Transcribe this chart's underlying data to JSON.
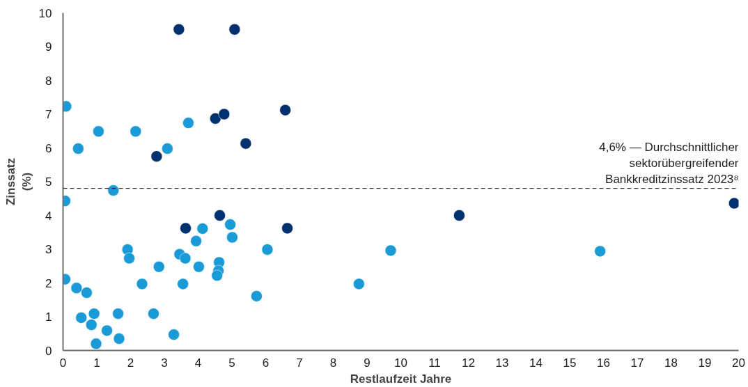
{
  "chart_data": {
    "type": "scatter",
    "xlabel": "Restlaufzeit Jahre",
    "ylabel": "Zinssatz\n(%)",
    "xlim": [
      0,
      20
    ],
    "ylim": [
      0,
      10
    ],
    "xticks": [
      0,
      1,
      2,
      3,
      4,
      5,
      6,
      7,
      8,
      9,
      10,
      11,
      12,
      13,
      14,
      15,
      16,
      17,
      18,
      19,
      20
    ],
    "yticks": [
      0,
      1,
      2,
      3,
      4,
      5,
      6,
      7,
      8,
      9,
      10
    ],
    "grid": false,
    "marker": "circle",
    "ref_lines": [
      {
        "axis": "y",
        "value": 4.8,
        "label": "4,6% — Durchschnittlicher\nsektorübergreifender\nBankkreditzinssatz 2023⁸",
        "color": "#000000",
        "line_style": "dashed"
      }
    ],
    "series": [
      {
        "color": "#1a9bd7",
        "x": [
          0.09,
          0.45,
          1.05,
          2.15,
          3.09,
          3.71,
          1.49,
          0.06,
          0.06,
          0.4,
          0.7,
          0.54,
          0.92,
          0.84,
          0.98,
          1.3,
          1.63,
          1.66,
          1.91,
          1.96,
          2.34,
          2.68,
          2.84,
          3.28,
          3.45,
          3.62,
          3.55,
          3.94,
          4.13,
          4.02,
          4.95,
          5.01,
          4.62,
          4.6,
          4.56,
          6.05,
          5.73,
          8.76,
          9.7,
          15.9
        ],
        "values": [
          7.23,
          5.98,
          6.49,
          6.49,
          5.98,
          6.74,
          4.74,
          4.43,
          2.11,
          1.85,
          1.71,
          0.97,
          1.09,
          0.76,
          0.2,
          0.59,
          1.09,
          0.35,
          2.99,
          2.73,
          1.97,
          1.09,
          2.48,
          0.47,
          2.85,
          2.73,
          1.97,
          3.24,
          3.61,
          2.48,
          3.73,
          3.35,
          2.61,
          2.36,
          2.22,
          2.99,
          1.61,
          1.97,
          2.96,
          2.94
        ]
      },
      {
        "color": "#00306e",
        "x": [
          3.43,
          5.08,
          4.51,
          4.77,
          6.58,
          5.41,
          2.77,
          4.64,
          3.63,
          6.64,
          11.73,
          19.87
        ],
        "values": [
          9.51,
          9.51,
          6.87,
          7.0,
          7.12,
          6.13,
          5.75,
          4.0,
          3.62,
          3.62,
          4.0,
          4.36
        ]
      }
    ]
  }
}
